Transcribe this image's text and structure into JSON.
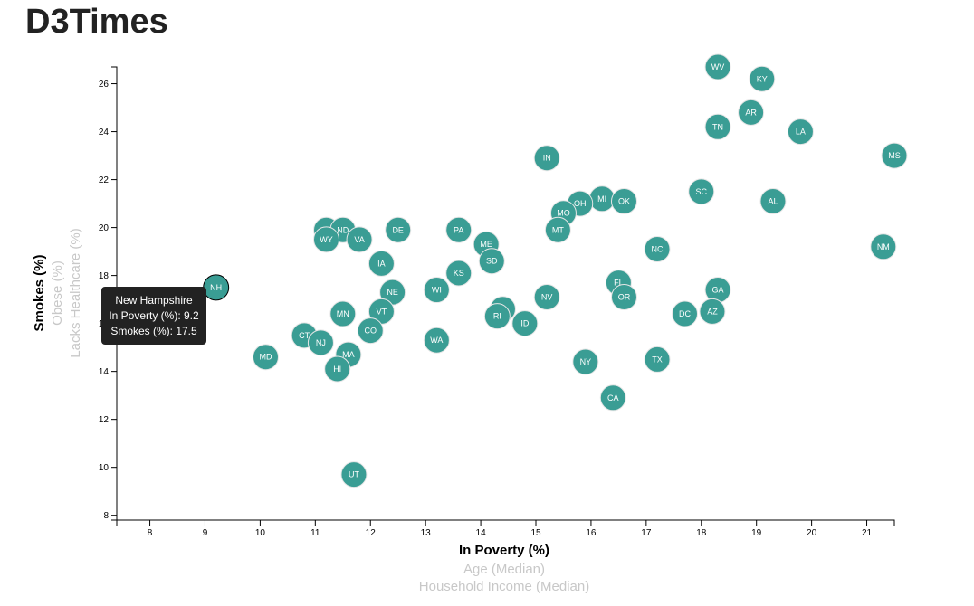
{
  "page": {
    "title": "D3Times"
  },
  "chart_data": {
    "type": "scatter",
    "xlabel": "In Poverty (%)",
    "x_alt_labels": [
      "Age (Median)",
      "Household Income (Median)"
    ],
    "ylabel": "Smokes (%)",
    "y_alt_labels": [
      "Obese (%)",
      "Lacks Healthcare (%)"
    ],
    "xlim": [
      7.4,
      21.5
    ],
    "ylim": [
      7.8,
      26.7
    ],
    "x_ticks": [
      8,
      9,
      10,
      11,
      12,
      13,
      14,
      15,
      16,
      17,
      18,
      19,
      20,
      21
    ],
    "y_ticks": [
      8,
      10,
      12,
      14,
      16,
      18,
      20,
      22,
      24,
      26
    ],
    "grid": false,
    "points": [
      {
        "abbr": "WV",
        "x": 18.3,
        "y": 26.7
      },
      {
        "abbr": "KY",
        "x": 19.1,
        "y": 26.2
      },
      {
        "abbr": "AR",
        "x": 18.9,
        "y": 24.8
      },
      {
        "abbr": "TN",
        "x": 18.3,
        "y": 24.2
      },
      {
        "abbr": "LA",
        "x": 19.8,
        "y": 24.0
      },
      {
        "abbr": "MS",
        "x": 21.5,
        "y": 23.0
      },
      {
        "abbr": "IN",
        "x": 15.2,
        "y": 22.9
      },
      {
        "abbr": "SC",
        "x": 18.0,
        "y": 21.5
      },
      {
        "abbr": "AL",
        "x": 19.3,
        "y": 21.1
      },
      {
        "abbr": "MI",
        "x": 16.2,
        "y": 21.2
      },
      {
        "abbr": "OK",
        "x": 16.6,
        "y": 21.1
      },
      {
        "abbr": "OH",
        "x": 15.8,
        "y": 21.0
      },
      {
        "abbr": "MO",
        "x": 15.5,
        "y": 20.6
      },
      {
        "abbr": "MT",
        "x": 15.4,
        "y": 19.9
      },
      {
        "abbr": "AK",
        "x": 11.2,
        "y": 19.9
      },
      {
        "abbr": "ND",
        "x": 11.5,
        "y": 19.9
      },
      {
        "abbr": "DE",
        "x": 12.5,
        "y": 19.9
      },
      {
        "abbr": "PA",
        "x": 13.6,
        "y": 19.9
      },
      {
        "abbr": "WY",
        "x": 11.2,
        "y": 19.5
      },
      {
        "abbr": "VA",
        "x": 11.8,
        "y": 19.5
      },
      {
        "abbr": "ME",
        "x": 14.1,
        "y": 19.3
      },
      {
        "abbr": "NM",
        "x": 21.3,
        "y": 19.2
      },
      {
        "abbr": "NC",
        "x": 17.2,
        "y": 19.1
      },
      {
        "abbr": "SD",
        "x": 14.2,
        "y": 18.6
      },
      {
        "abbr": "IA",
        "x": 12.2,
        "y": 18.5
      },
      {
        "abbr": "KS",
        "x": 13.6,
        "y": 18.1
      },
      {
        "abbr": "FL",
        "x": 16.5,
        "y": 17.7
      },
      {
        "abbr": "NH",
        "x": 9.2,
        "y": 17.5
      },
      {
        "abbr": "WI",
        "x": 13.2,
        "y": 17.4
      },
      {
        "abbr": "GA",
        "x": 18.3,
        "y": 17.4
      },
      {
        "abbr": "NE",
        "x": 12.4,
        "y": 17.3
      },
      {
        "abbr": "NV",
        "x": 15.2,
        "y": 17.1
      },
      {
        "abbr": "OR",
        "x": 16.6,
        "y": 17.1
      },
      {
        "abbr": "VT",
        "x": 12.2,
        "y": 16.5
      },
      {
        "abbr": "IL",
        "x": 14.4,
        "y": 16.6
      },
      {
        "abbr": "MN",
        "x": 11.5,
        "y": 16.4
      },
      {
        "abbr": "DC",
        "x": 17.7,
        "y": 16.4
      },
      {
        "abbr": "AZ",
        "x": 18.2,
        "y": 16.5
      },
      {
        "abbr": "RI",
        "x": 14.3,
        "y": 16.3
      },
      {
        "abbr": "ID",
        "x": 14.8,
        "y": 16.0
      },
      {
        "abbr": "CO",
        "x": 12.0,
        "y": 15.7
      },
      {
        "abbr": "CT",
        "x": 10.8,
        "y": 15.5
      },
      {
        "abbr": "WA",
        "x": 13.2,
        "y": 15.3
      },
      {
        "abbr": "NJ",
        "x": 11.1,
        "y": 15.2
      },
      {
        "abbr": "MA",
        "x": 11.6,
        "y": 14.7
      },
      {
        "abbr": "MD",
        "x": 10.1,
        "y": 14.6
      },
      {
        "abbr": "TX",
        "x": 17.2,
        "y": 14.5
      },
      {
        "abbr": "NY",
        "x": 15.9,
        "y": 14.4
      },
      {
        "abbr": "HI",
        "x": 11.4,
        "y": 14.1
      },
      {
        "abbr": "CA",
        "x": 16.4,
        "y": 12.9
      },
      {
        "abbr": "UT",
        "x": 11.7,
        "y": 9.7
      }
    ]
  },
  "tooltip": {
    "state_name": "New Hampshire",
    "line_x": "In Poverty (%): 9.2",
    "line_y": "Smokes (%): 17.5"
  },
  "colors": {
    "circle_fill": "#3a9d94",
    "inactive_label": "#c8c8c8",
    "tooltip_bg": "#222222"
  }
}
